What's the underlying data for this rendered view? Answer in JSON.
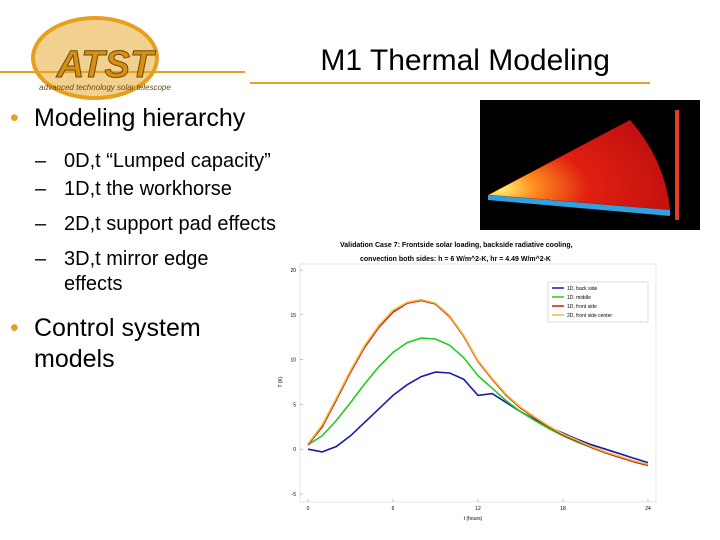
{
  "header": {
    "title": "M1 Thermal Modeling",
    "logo_text": "ATST",
    "logo_subtext": "advanced technology solar telescope"
  },
  "bullets": [
    {
      "text": "Modeling hierarchy",
      "subitems": [
        "0D,t “Lumped capacity”",
        "1D,t the workhorse",
        "2D,t support pad effects",
        "3D,t mirror edge effects"
      ]
    },
    {
      "text": "Control system models",
      "subitems": []
    }
  ],
  "chart_data": {
    "type": "line",
    "title": [
      "Validation Case 7: Frontside solar loading, backside radiative cooling,",
      "convection both sides: h = 6 W/m^2-K, hr = 4.49 W/m^2-K"
    ],
    "xlabel": "t (hours)",
    "ylabel": "T (K)",
    "x": [
      0,
      1,
      2,
      3,
      4,
      5,
      6,
      7,
      8,
      9,
      10,
      11,
      12,
      13,
      14,
      15,
      16,
      17,
      18,
      19,
      20,
      21,
      22,
      23,
      24
    ],
    "xlim": [
      0,
      24
    ],
    "ylim": [
      -5,
      20
    ],
    "xticks": [
      0,
      6,
      12,
      18,
      24
    ],
    "yticks": [
      -5,
      0,
      5,
      10,
      15,
      20
    ],
    "legend": "upper right",
    "series": [
      {
        "name": "1D, back side",
        "color": "#1a1aa8",
        "values": [
          0,
          -0.3,
          0.3,
          1.5,
          3,
          4.5,
          6,
          7.2,
          8.1,
          8.6,
          8.5,
          7.8,
          6.0,
          6.2,
          5.2,
          4.2,
          3.3,
          2.5,
          1.8,
          1.1,
          0.5,
          0,
          -0.5,
          -1,
          -1.5
        ]
      },
      {
        "name": "1D, middle",
        "color": "#22cc22",
        "values": [
          0.5,
          1.5,
          3.2,
          5.2,
          7.3,
          9.2,
          10.8,
          11.9,
          12.4,
          12.3,
          11.6,
          10.2,
          8.2,
          6.8,
          5.4,
          4.2,
          3.2,
          2.3,
          1.5,
          0.8,
          0.2,
          -0.4,
          -0.9,
          -1.4,
          -1.8
        ]
      },
      {
        "name": "1D, front side",
        "color": "#dd1111",
        "values": [
          0.5,
          2.5,
          5.5,
          8.6,
          11.4,
          13.6,
          15.3,
          16.3,
          16.6,
          16.2,
          14.8,
          12.6,
          9.8,
          7.8,
          6.0,
          4.6,
          3.5,
          2.5,
          1.6,
          0.9,
          0.2,
          -0.4,
          -0.9,
          -1.4,
          -1.8
        ]
      },
      {
        "name": "2D, front side center",
        "color": "#e8c040",
        "values": [
          0.6,
          2.7,
          5.7,
          8.8,
          11.6,
          13.8,
          15.5,
          16.4,
          16.7,
          16.3,
          14.9,
          12.7,
          9.9,
          7.9,
          6.1,
          4.7,
          3.6,
          2.6,
          1.7,
          1.0,
          0.3,
          -0.3,
          -0.8,
          -1.3,
          -1.7
        ]
      }
    ]
  }
}
